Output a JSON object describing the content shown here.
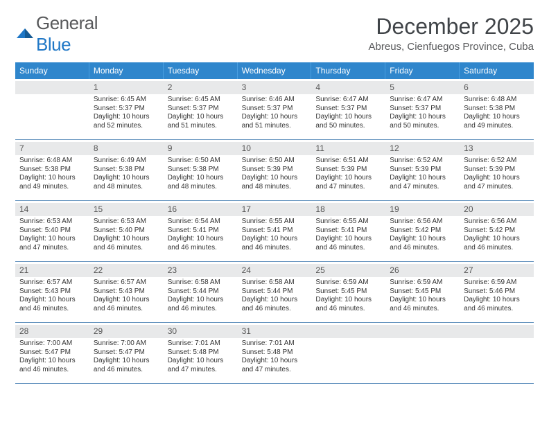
{
  "brand": {
    "general": "General",
    "blue": "Blue"
  },
  "title": "December 2025",
  "location": "Abreus, Cienfuegos Province, Cuba",
  "labels": {
    "sunrise": "Sunrise: ",
    "sunset": "Sunset: ",
    "daylight": "Daylight: "
  },
  "weekday_headers": [
    "Sunday",
    "Monday",
    "Tuesday",
    "Wednesday",
    "Thursday",
    "Friday",
    "Saturday"
  ],
  "colors": {
    "header_bg": "#2f86cc",
    "brand_blue": "#1f77c6",
    "cell_border": "#6795c0",
    "daynum_bg": "#e8e9ea"
  },
  "layout": {
    "columns": 7,
    "rows": 5,
    "first_weekday_offset": 1
  },
  "days": [
    {
      "n": "1",
      "sunrise": "6:45 AM",
      "sunset": "5:37 PM",
      "daylight": "10 hours and 52 minutes."
    },
    {
      "n": "2",
      "sunrise": "6:45 AM",
      "sunset": "5:37 PM",
      "daylight": "10 hours and 51 minutes."
    },
    {
      "n": "3",
      "sunrise": "6:46 AM",
      "sunset": "5:37 PM",
      "daylight": "10 hours and 51 minutes."
    },
    {
      "n": "4",
      "sunrise": "6:47 AM",
      "sunset": "5:37 PM",
      "daylight": "10 hours and 50 minutes."
    },
    {
      "n": "5",
      "sunrise": "6:47 AM",
      "sunset": "5:37 PM",
      "daylight": "10 hours and 50 minutes."
    },
    {
      "n": "6",
      "sunrise": "6:48 AM",
      "sunset": "5:38 PM",
      "daylight": "10 hours and 49 minutes."
    },
    {
      "n": "7",
      "sunrise": "6:48 AM",
      "sunset": "5:38 PM",
      "daylight": "10 hours and 49 minutes."
    },
    {
      "n": "8",
      "sunrise": "6:49 AM",
      "sunset": "5:38 PM",
      "daylight": "10 hours and 48 minutes."
    },
    {
      "n": "9",
      "sunrise": "6:50 AM",
      "sunset": "5:38 PM",
      "daylight": "10 hours and 48 minutes."
    },
    {
      "n": "10",
      "sunrise": "6:50 AM",
      "sunset": "5:39 PM",
      "daylight": "10 hours and 48 minutes."
    },
    {
      "n": "11",
      "sunrise": "6:51 AM",
      "sunset": "5:39 PM",
      "daylight": "10 hours and 47 minutes."
    },
    {
      "n": "12",
      "sunrise": "6:52 AM",
      "sunset": "5:39 PM",
      "daylight": "10 hours and 47 minutes."
    },
    {
      "n": "13",
      "sunrise": "6:52 AM",
      "sunset": "5:39 PM",
      "daylight": "10 hours and 47 minutes."
    },
    {
      "n": "14",
      "sunrise": "6:53 AM",
      "sunset": "5:40 PM",
      "daylight": "10 hours and 47 minutes."
    },
    {
      "n": "15",
      "sunrise": "6:53 AM",
      "sunset": "5:40 PM",
      "daylight": "10 hours and 46 minutes."
    },
    {
      "n": "16",
      "sunrise": "6:54 AM",
      "sunset": "5:41 PM",
      "daylight": "10 hours and 46 minutes."
    },
    {
      "n": "17",
      "sunrise": "6:55 AM",
      "sunset": "5:41 PM",
      "daylight": "10 hours and 46 minutes."
    },
    {
      "n": "18",
      "sunrise": "6:55 AM",
      "sunset": "5:41 PM",
      "daylight": "10 hours and 46 minutes."
    },
    {
      "n": "19",
      "sunrise": "6:56 AM",
      "sunset": "5:42 PM",
      "daylight": "10 hours and 46 minutes."
    },
    {
      "n": "20",
      "sunrise": "6:56 AM",
      "sunset": "5:42 PM",
      "daylight": "10 hours and 46 minutes."
    },
    {
      "n": "21",
      "sunrise": "6:57 AM",
      "sunset": "5:43 PM",
      "daylight": "10 hours and 46 minutes."
    },
    {
      "n": "22",
      "sunrise": "6:57 AM",
      "sunset": "5:43 PM",
      "daylight": "10 hours and 46 minutes."
    },
    {
      "n": "23",
      "sunrise": "6:58 AM",
      "sunset": "5:44 PM",
      "daylight": "10 hours and 46 minutes."
    },
    {
      "n": "24",
      "sunrise": "6:58 AM",
      "sunset": "5:44 PM",
      "daylight": "10 hours and 46 minutes."
    },
    {
      "n": "25",
      "sunrise": "6:59 AM",
      "sunset": "5:45 PM",
      "daylight": "10 hours and 46 minutes."
    },
    {
      "n": "26",
      "sunrise": "6:59 AM",
      "sunset": "5:45 PM",
      "daylight": "10 hours and 46 minutes."
    },
    {
      "n": "27",
      "sunrise": "6:59 AM",
      "sunset": "5:46 PM",
      "daylight": "10 hours and 46 minutes."
    },
    {
      "n": "28",
      "sunrise": "7:00 AM",
      "sunset": "5:47 PM",
      "daylight": "10 hours and 46 minutes."
    },
    {
      "n": "29",
      "sunrise": "7:00 AM",
      "sunset": "5:47 PM",
      "daylight": "10 hours and 46 minutes."
    },
    {
      "n": "30",
      "sunrise": "7:01 AM",
      "sunset": "5:48 PM",
      "daylight": "10 hours and 47 minutes."
    },
    {
      "n": "31",
      "sunrise": "7:01 AM",
      "sunset": "5:48 PM",
      "daylight": "10 hours and 47 minutes."
    }
  ]
}
